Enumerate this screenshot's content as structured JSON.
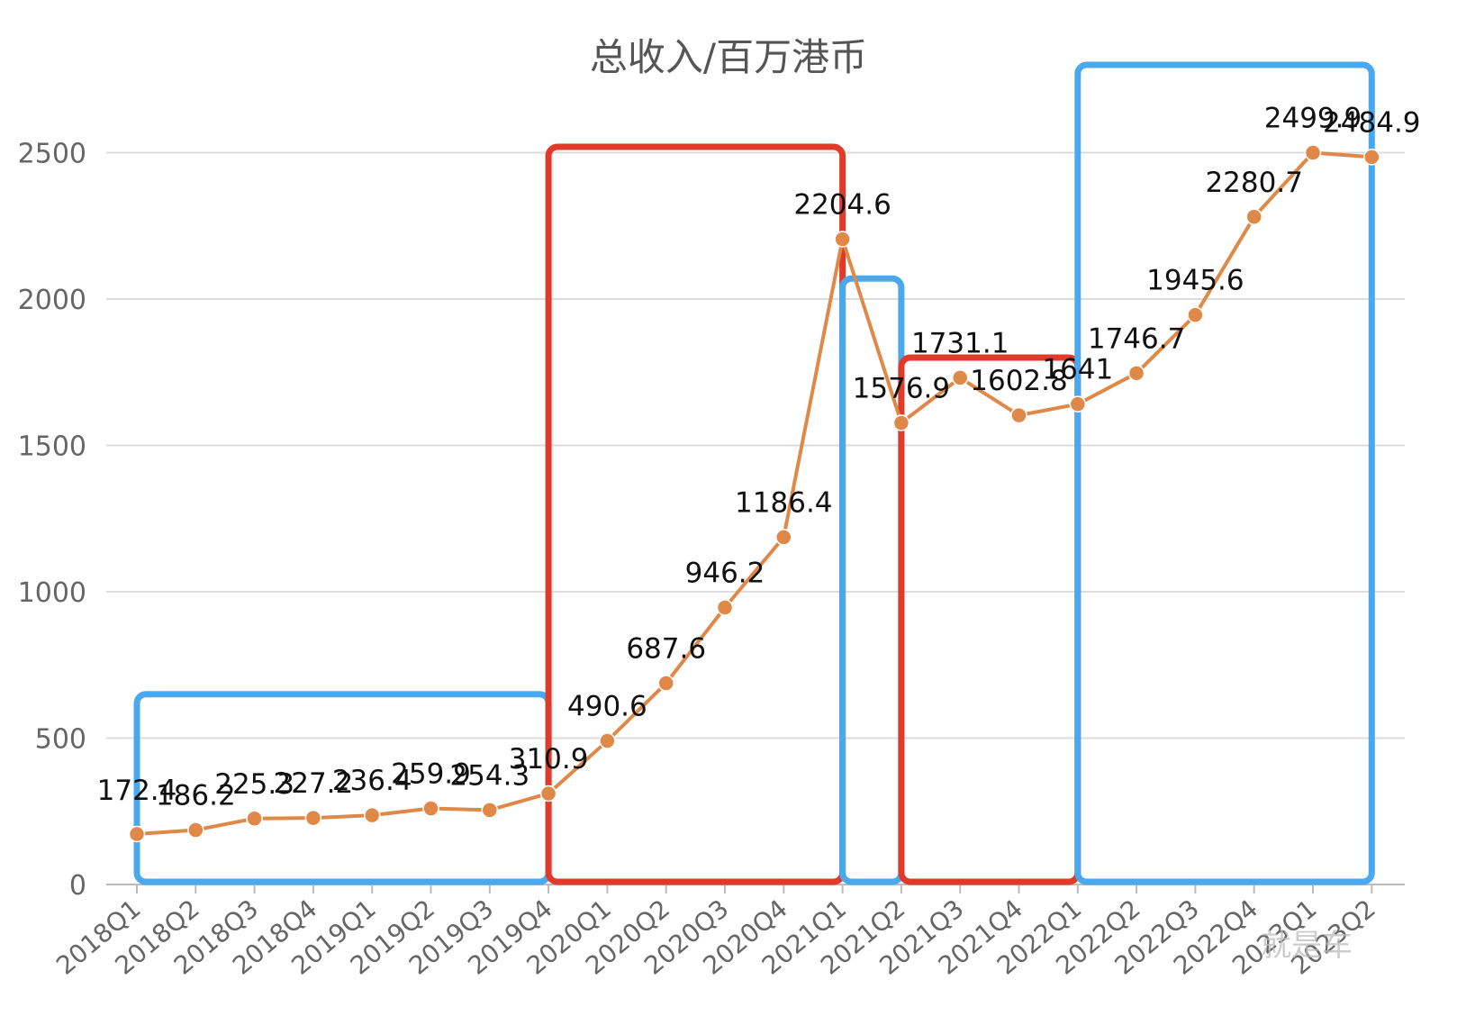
{
  "chart_data": {
    "type": "line",
    "title": "总收入/百万港币",
    "xlabel": "",
    "ylabel": "",
    "ylim": [
      0,
      2500
    ],
    "yticks": [
      0,
      500,
      1000,
      1500,
      2000,
      2500
    ],
    "grid": true,
    "categories": [
      "2018Q1",
      "2018Q2",
      "2018Q3",
      "2018Q4",
      "2019Q1",
      "2019Q2",
      "2019Q3",
      "2019Q4",
      "2020Q1",
      "2020Q2",
      "2020Q3",
      "2020Q4",
      "2021Q1",
      "2021Q2",
      "2021Q3",
      "2021Q4",
      "2022Q1",
      "2022Q2",
      "2022Q3",
      "2022Q4",
      "2023Q1",
      "2023Q2"
    ],
    "values": [
      172.4,
      186.2,
      225.3,
      227.2,
      236.4,
      259.9,
      254.3,
      310.9,
      490.6,
      687.6,
      946.2,
      1186.4,
      2204.6,
      1576.9,
      1731.1,
      1602.8,
      1641,
      1746.7,
      1945.6,
      2280.7,
      2499.9,
      2484.9
    ],
    "labels": [
      "172.4",
      "186.2",
      "225.3",
      "227.2",
      "236.4",
      "259.9",
      "254.3",
      "310.9",
      "490.6",
      "687.6",
      "946.2",
      "1186.4",
      "2204.6",
      "1576.9",
      "1731.1",
      "1602.8",
      "1641",
      "1746.7",
      "1945.6",
      "2280.7",
      "2499.9",
      "2484.9"
    ],
    "line_color": "#E08848",
    "annotation_boxes": [
      {
        "color": "#4AA8EE",
        "from": "2018Q1",
        "to": "2019Q4",
        "top_value": 650
      },
      {
        "color": "#E03A2A",
        "from": "2019Q4",
        "to": "2021Q1",
        "top_value": 2520
      },
      {
        "color": "#4AA8EE",
        "from": "2021Q1",
        "to": "2021Q2",
        "top_value": 2070
      },
      {
        "color": "#E03A2A",
        "from": "2021Q2",
        "to": "2022Q1",
        "top_value": 1800
      },
      {
        "color": "#4AA8EE",
        "from": "2022Q1",
        "to": "2023Q2",
        "top_value": 2800
      }
    ]
  },
  "watermark": "就是车"
}
